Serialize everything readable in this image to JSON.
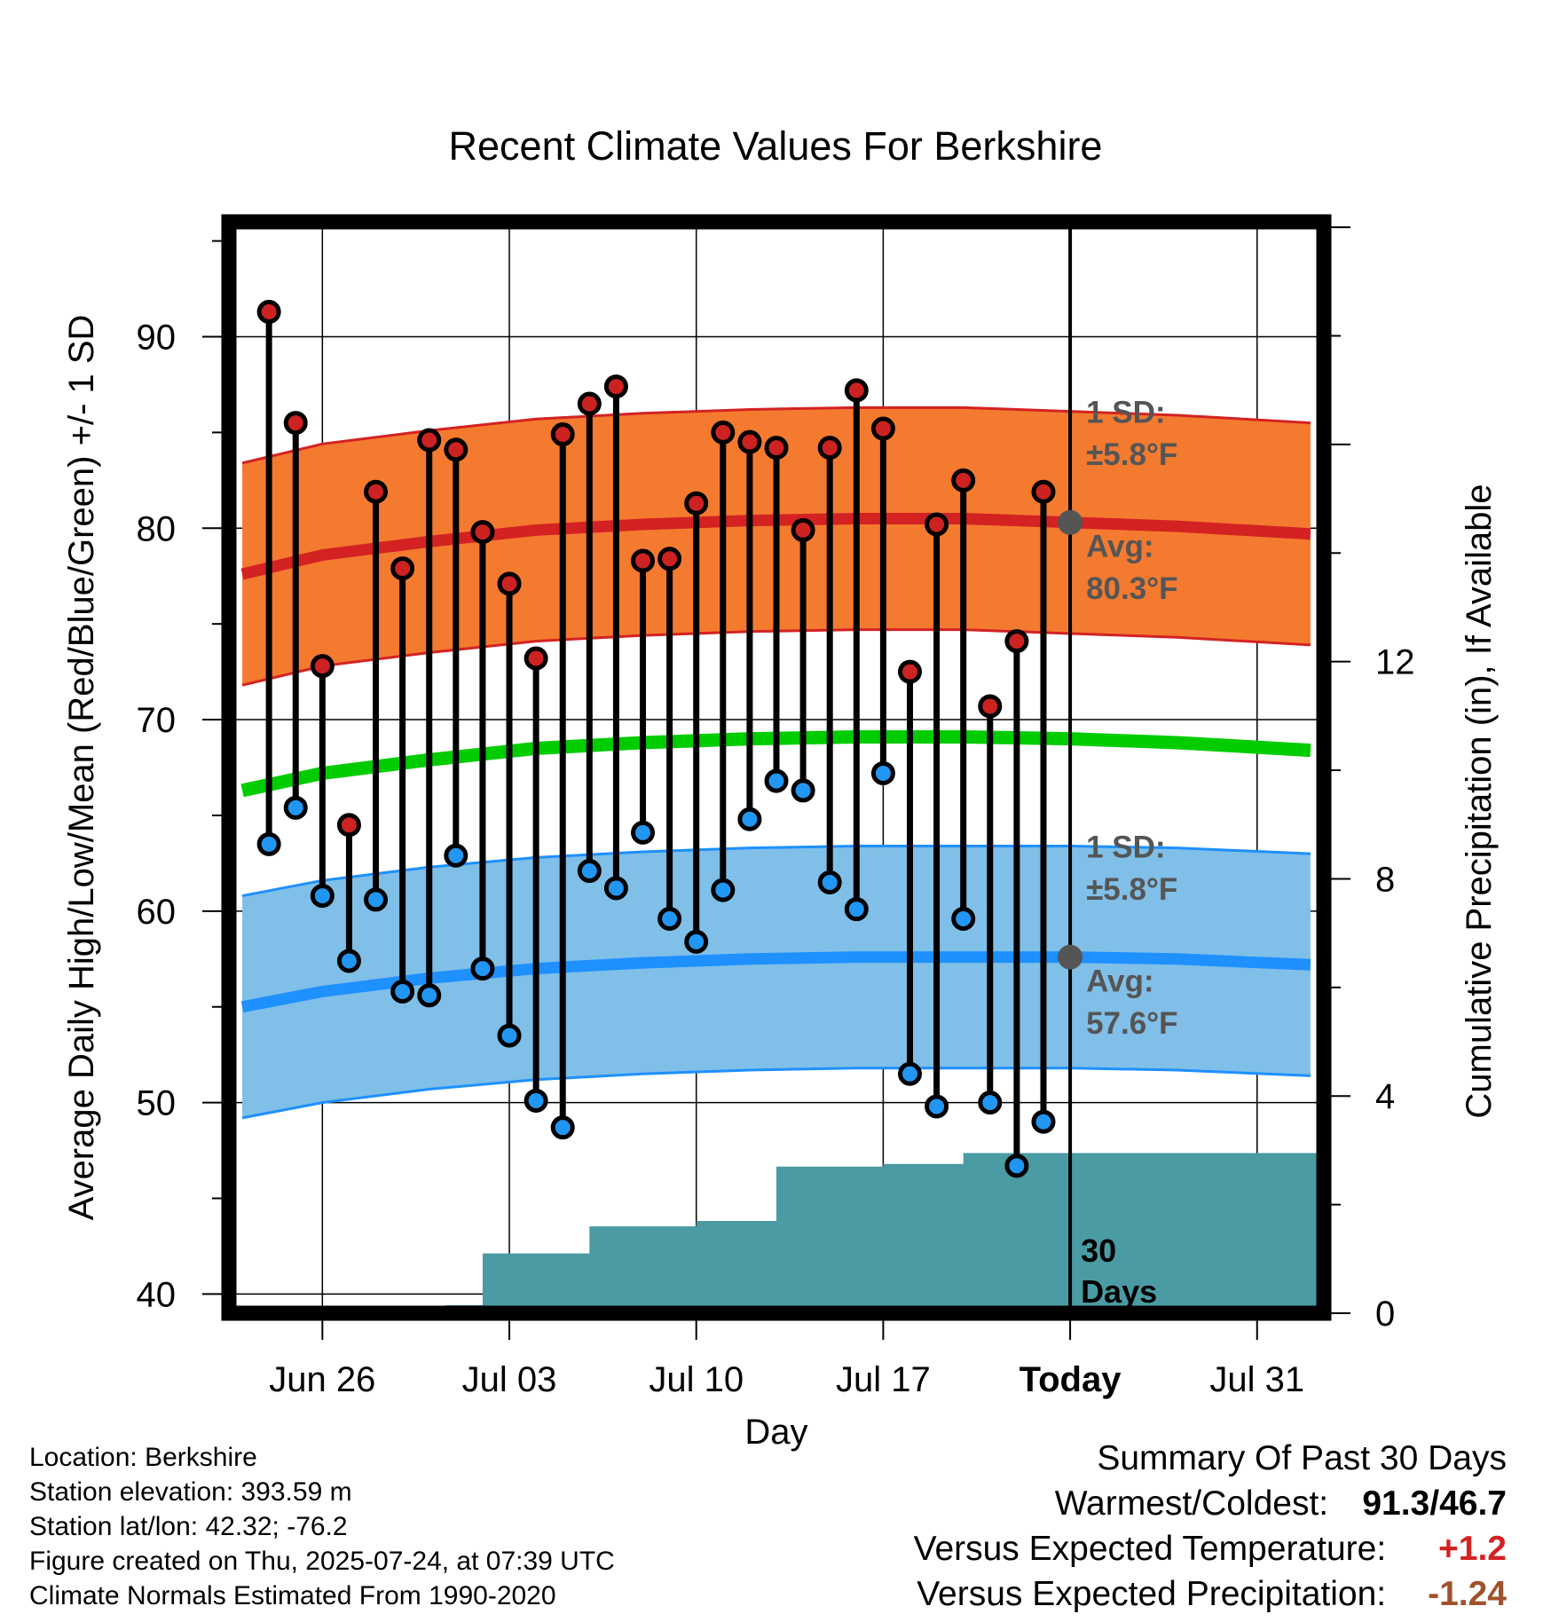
{
  "chart_data": {
    "type": "line",
    "title": "Recent Climate Values For Berkshire",
    "xlabel": "Day",
    "ylabel": "Average Daily High/Low/Mean (Red/Blue/Green) +/- 1 SD",
    "y2label": "Cumulative Precipitation (in), If Available",
    "ylim": [
      39,
      96
    ],
    "y2lim": [
      0,
      20.1
    ],
    "xlim": [
      -3.5,
      37.5
    ],
    "x_ticks": [
      {
        "day": 0,
        "label": "Jun 26"
      },
      {
        "day": 7,
        "label": "Jul 03"
      },
      {
        "day": 14,
        "label": "Jul 10"
      },
      {
        "day": 21,
        "label": "Jul 17"
      },
      {
        "day": 28,
        "label": "Today"
      },
      {
        "day": 35,
        "label": "Jul 31"
      }
    ],
    "y_ticks": [
      40,
      50,
      60,
      70,
      80,
      90
    ],
    "y2_ticks": [
      0,
      4,
      8,
      12
    ],
    "today_day": 28,
    "grid": true,
    "daily_days": [
      -2,
      -1,
      0,
      1,
      2,
      3,
      4,
      5,
      6,
      7,
      8,
      9,
      10,
      11,
      12,
      13,
      14,
      15,
      16,
      17,
      18,
      19,
      20,
      21,
      22,
      23,
      24,
      25,
      26,
      27
    ],
    "daily_highs": [
      91.3,
      85.5,
      72.8,
      64.5,
      81.9,
      77.9,
      84.6,
      84.1,
      79.8,
      77.1,
      73.2,
      84.9,
      86.5,
      87.4,
      78.3,
      78.4,
      81.3,
      85.0,
      84.5,
      84.2,
      79.9,
      84.2,
      87.2,
      85.2,
      72.5,
      80.2,
      82.5,
      70.7,
      74.1,
      81.9
    ],
    "daily_lows": [
      63.5,
      65.4,
      60.8,
      57.4,
      60.6,
      55.8,
      55.6,
      62.9,
      57.0,
      53.5,
      50.1,
      48.7,
      62.1,
      61.2,
      64.1,
      59.6,
      58.4,
      61.1,
      64.8,
      66.8,
      66.3,
      61.5,
      60.1,
      67.2,
      51.5,
      49.8,
      59.6,
      50.0,
      46.7,
      49.0
    ],
    "normal_days": [
      -3,
      0,
      4,
      8,
      12,
      16,
      20,
      24,
      28,
      32,
      37
    ],
    "normal_high": [
      77.6,
      78.6,
      79.3,
      79.9,
      80.2,
      80.4,
      80.5,
      80.5,
      80.3,
      80.1,
      79.7
    ],
    "normal_low": [
      55.0,
      55.8,
      56.5,
      57.0,
      57.3,
      57.5,
      57.6,
      57.6,
      57.6,
      57.5,
      57.2
    ],
    "normal_mean": [
      66.3,
      67.2,
      67.9,
      68.5,
      68.8,
      69.0,
      69.1,
      69.1,
      69.0,
      68.8,
      68.4
    ],
    "sd_high": 5.8,
    "sd_low": 5.8,
    "precip_steps": [
      {
        "from": -3.5,
        "to": 4.6,
        "value": 0
      },
      {
        "from": 4.6,
        "to": 6,
        "value": 0.15
      },
      {
        "from": 6,
        "to": 10,
        "value": 1.1
      },
      {
        "from": 10,
        "to": 14,
        "value": 1.6
      },
      {
        "from": 14,
        "to": 16,
        "value": 1.7
      },
      {
        "from": 16,
        "to": 17,
        "value": 1.7
      },
      {
        "from": 17,
        "to": 21,
        "value": 2.7
      },
      {
        "from": 21,
        "to": 24,
        "value": 2.75
      },
      {
        "from": 24,
        "to": 37.5,
        "value": 2.95
      }
    ],
    "annotations": {
      "high_sd_label": "1 SD:",
      "high_sd_value": "±5.8°F",
      "high_avg_label": "Avg:",
      "high_avg_value": "80.3°F",
      "low_sd_label": "1 SD:",
      "low_sd_value": "±5.8°F",
      "low_avg_label": "Avg:",
      "low_avg_value": "57.6°F",
      "days_label_1": "30",
      "days_label_2": "Days"
    },
    "colors": {
      "high_band": "#f47a30",
      "high_line": "#d42222",
      "low_band": "#80bfe8",
      "low_line": "#1e90ff",
      "mean_line": "#00cc00",
      "precip": "#4a9ba3",
      "high_marker": "#cc2222",
      "low_marker": "#2196f3",
      "annotation_text": "#555555",
      "frame": "#000000"
    }
  },
  "location_info": {
    "location": "Location: Berkshire",
    "elevation": "Station elevation: 393.59 m",
    "latlon": "Station lat/lon: 42.32; -76.2",
    "created": "Figure created on Thu, 2025-07-24, at 07:39 UTC",
    "normals": "Climate Normals Estimated From 1990-2020"
  },
  "summary": {
    "title": "Summary Of Past 30 Days",
    "warmest_coldest_label": "Warmest/Coldest:",
    "warmest_coldest_value": "91.3/46.7",
    "temp_label": "Versus Expected Temperature:",
    "temp_value": "+1.2",
    "temp_color": "#d42222",
    "precip_label": "Versus Expected Precipitation:",
    "precip_value": "-1.24",
    "precip_color": "#a0522d"
  }
}
